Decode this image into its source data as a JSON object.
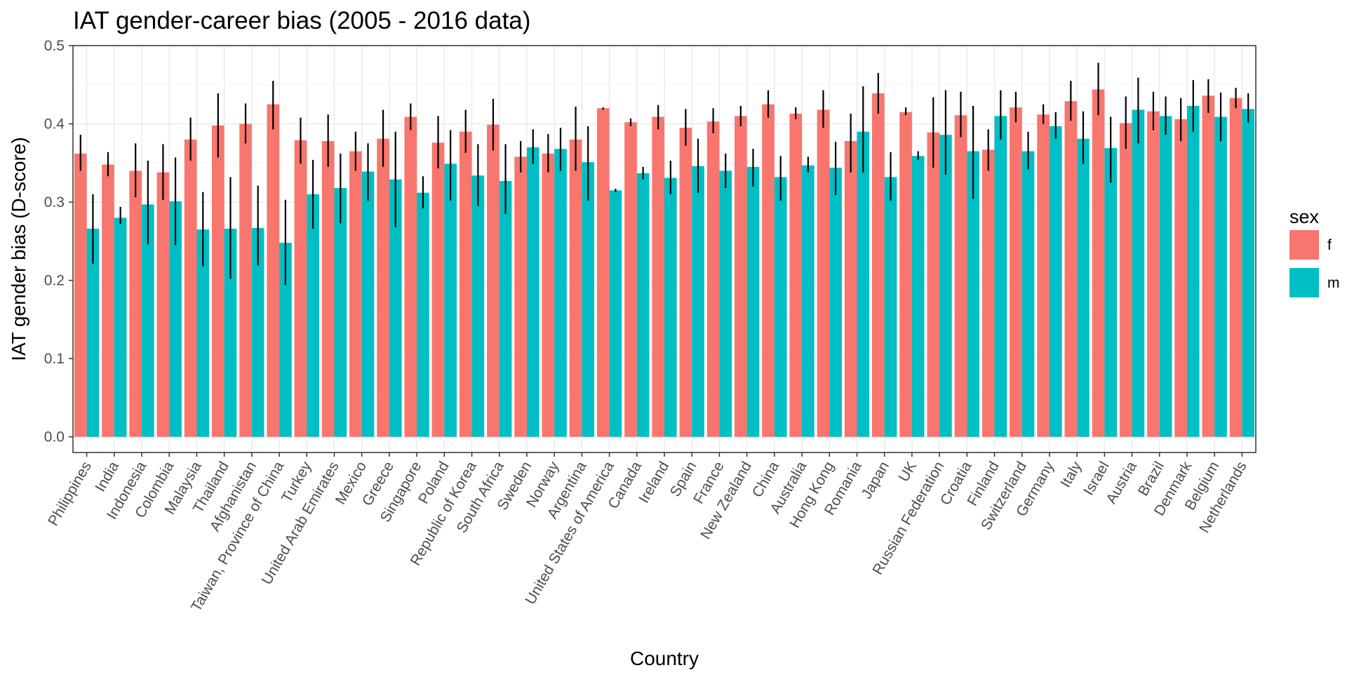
{
  "chart_data": {
    "type": "bar",
    "title": "IAT gender-career bias (2005 - 2016 data)",
    "xlabel": "Country",
    "ylabel": "IAT gender bias (D-score)",
    "ylim": [
      -0.02,
      0.5
    ],
    "yticks": [
      "0.0",
      "0.1",
      "0.2",
      "0.3",
      "0.4",
      "0.5"
    ],
    "grid": true,
    "legend": {
      "title": "sex",
      "position": "right"
    },
    "categories": [
      "Philippines",
      "India",
      "Indonesia",
      "Colombia",
      "Malaysia",
      "Thailand",
      "Afghanistan",
      "Taiwan, Province of China",
      "Turkey",
      "United Arab Emirates",
      "Mexico",
      "Greece",
      "Singapore",
      "Poland",
      "Republic of Korea",
      "South Africa",
      "Sweden",
      "Norway",
      "Argentina",
      "United States of America",
      "Canada",
      "Ireland",
      "Spain",
      "France",
      "New Zealand",
      "China",
      "Australia",
      "Hong Kong",
      "Romania",
      "Japan",
      "UK",
      "Russian Federation",
      "Croatia",
      "Finland",
      "Switzerland",
      "Germany",
      "Italy",
      "Israel",
      "Austria",
      "Brazil",
      "Denmark",
      "Belgium",
      "Netherlands"
    ],
    "series": [
      {
        "name": "f",
        "color": "#f8766d",
        "values": [
          0.362,
          0.348,
          0.34,
          0.338,
          0.38,
          0.398,
          0.4,
          0.425,
          0.379,
          0.378,
          0.365,
          0.381,
          0.409,
          0.376,
          0.39,
          0.399,
          0.358,
          0.362,
          0.38,
          0.42,
          0.402,
          0.409,
          0.395,
          0.403,
          0.41,
          0.425,
          0.413,
          0.418,
          0.378,
          0.439,
          0.415,
          0.389,
          0.411,
          0.367,
          0.421,
          0.412,
          0.429,
          0.444,
          0.401,
          0.416,
          0.406,
          0.436,
          0.433
        ],
        "err_low": [
          0.34,
          0.333,
          0.306,
          0.303,
          0.353,
          0.357,
          0.375,
          0.393,
          0.349,
          0.345,
          0.34,
          0.345,
          0.392,
          0.343,
          0.363,
          0.366,
          0.338,
          0.338,
          0.34,
          0.418,
          0.397,
          0.393,
          0.372,
          0.388,
          0.397,
          0.408,
          0.406,
          0.395,
          0.338,
          0.413,
          0.411,
          0.344,
          0.383,
          0.34,
          0.402,
          0.4,
          0.404,
          0.411,
          0.368,
          0.392,
          0.378,
          0.414,
          0.42
        ],
        "err_high": [
          0.386,
          0.364,
          0.375,
          0.374,
          0.408,
          0.439,
          0.426,
          0.455,
          0.408,
          0.412,
          0.39,
          0.418,
          0.426,
          0.41,
          0.418,
          0.432,
          0.378,
          0.387,
          0.422,
          0.421,
          0.407,
          0.424,
          0.419,
          0.42,
          0.423,
          0.443,
          0.421,
          0.443,
          0.413,
          0.465,
          0.421,
          0.434,
          0.441,
          0.393,
          0.441,
          0.425,
          0.455,
          0.478,
          0.435,
          0.441,
          0.433,
          0.457,
          0.446
        ]
      },
      {
        "name": "m",
        "color": "#00bfc4",
        "values": [
          0.266,
          0.28,
          0.297,
          0.301,
          0.265,
          0.266,
          0.267,
          0.248,
          0.31,
          0.318,
          0.339,
          0.329,
          0.312,
          0.349,
          0.334,
          0.327,
          0.37,
          0.368,
          0.351,
          0.315,
          0.337,
          0.331,
          0.346,
          0.34,
          0.345,
          0.332,
          0.347,
          0.344,
          0.39,
          0.332,
          0.359,
          0.386,
          0.365,
          0.41,
          0.365,
          0.397,
          0.381,
          0.369,
          0.418,
          0.41,
          0.423,
          0.409,
          0.419
        ],
        "err_low": [
          0.221,
          0.272,
          0.246,
          0.245,
          0.218,
          0.202,
          0.219,
          0.194,
          0.266,
          0.273,
          0.302,
          0.268,
          0.292,
          0.302,
          0.295,
          0.285,
          0.349,
          0.34,
          0.302,
          0.313,
          0.329,
          0.31,
          0.312,
          0.318,
          0.32,
          0.302,
          0.338,
          0.309,
          0.338,
          0.302,
          0.354,
          0.335,
          0.304,
          0.38,
          0.342,
          0.381,
          0.349,
          0.325,
          0.375,
          0.386,
          0.39,
          0.378,
          0.402
        ],
        "err_high": [
          0.31,
          0.294,
          0.353,
          0.357,
          0.313,
          0.332,
          0.321,
          0.303,
          0.354,
          0.362,
          0.375,
          0.39,
          0.333,
          0.392,
          0.374,
          0.374,
          0.393,
          0.395,
          0.397,
          0.317,
          0.345,
          0.353,
          0.381,
          0.362,
          0.368,
          0.359,
          0.358,
          0.377,
          0.448,
          0.364,
          0.365,
          0.443,
          0.423,
          0.443,
          0.39,
          0.415,
          0.416,
          0.409,
          0.459,
          0.435,
          0.456,
          0.44,
          0.439
        ]
      }
    ]
  }
}
